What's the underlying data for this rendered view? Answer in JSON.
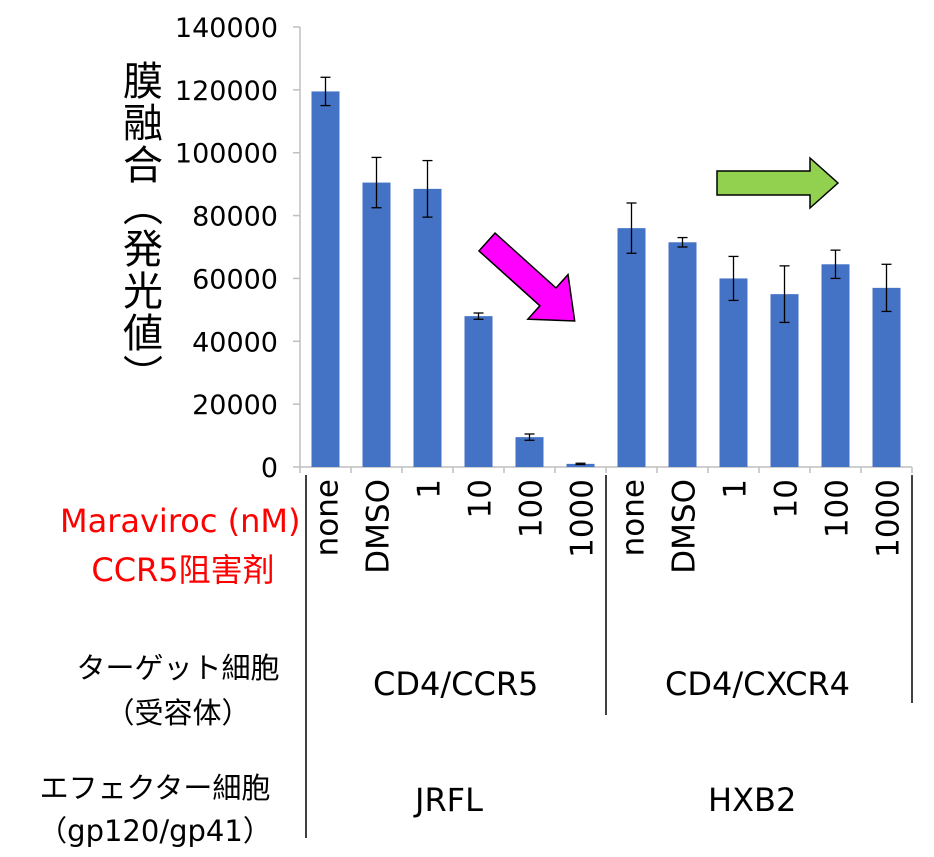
{
  "chart_data": {
    "type": "bar",
    "ylabel": "膜融合（発光値）",
    "ylim": [
      0,
      140000
    ],
    "yticks": [
      "0",
      "20000",
      "40000",
      "60000",
      "80000",
      "100000",
      "120000",
      "140000"
    ],
    "categories": [
      "none",
      "DMSO",
      "1",
      "10",
      "100",
      "1000",
      "none",
      "DMSO",
      "1",
      "10",
      "100",
      "1000"
    ],
    "values": [
      119500,
      90500,
      88500,
      48000,
      9500,
      1000,
      76000,
      71500,
      60000,
      55000,
      64500,
      57000
    ],
    "errors": [
      4500,
      8000,
      9000,
      1000,
      1000,
      200,
      8000,
      1500,
      7000,
      9000,
      4500,
      7500
    ],
    "bar_color": "#4472c4",
    "groups": [
      {
        "target": "CD4/CCR5",
        "effector": "JRFL",
        "arrow": "magenta-down-right"
      },
      {
        "target": "CD4/CXCR4",
        "effector": "HXB2",
        "arrow": "green-right"
      }
    ],
    "arrow_colors": {
      "magenta": "#ff00ff",
      "green": "#92d050"
    }
  },
  "labels": {
    "maraviroc": "Maraviroc (nM)",
    "ccr5": "CCR5阻害剤",
    "target_title": "ターゲット細胞",
    "target_sub": "（受容体）",
    "effector_title": "エフェクター細胞",
    "effector_sub": "（gp120/gp41）"
  }
}
